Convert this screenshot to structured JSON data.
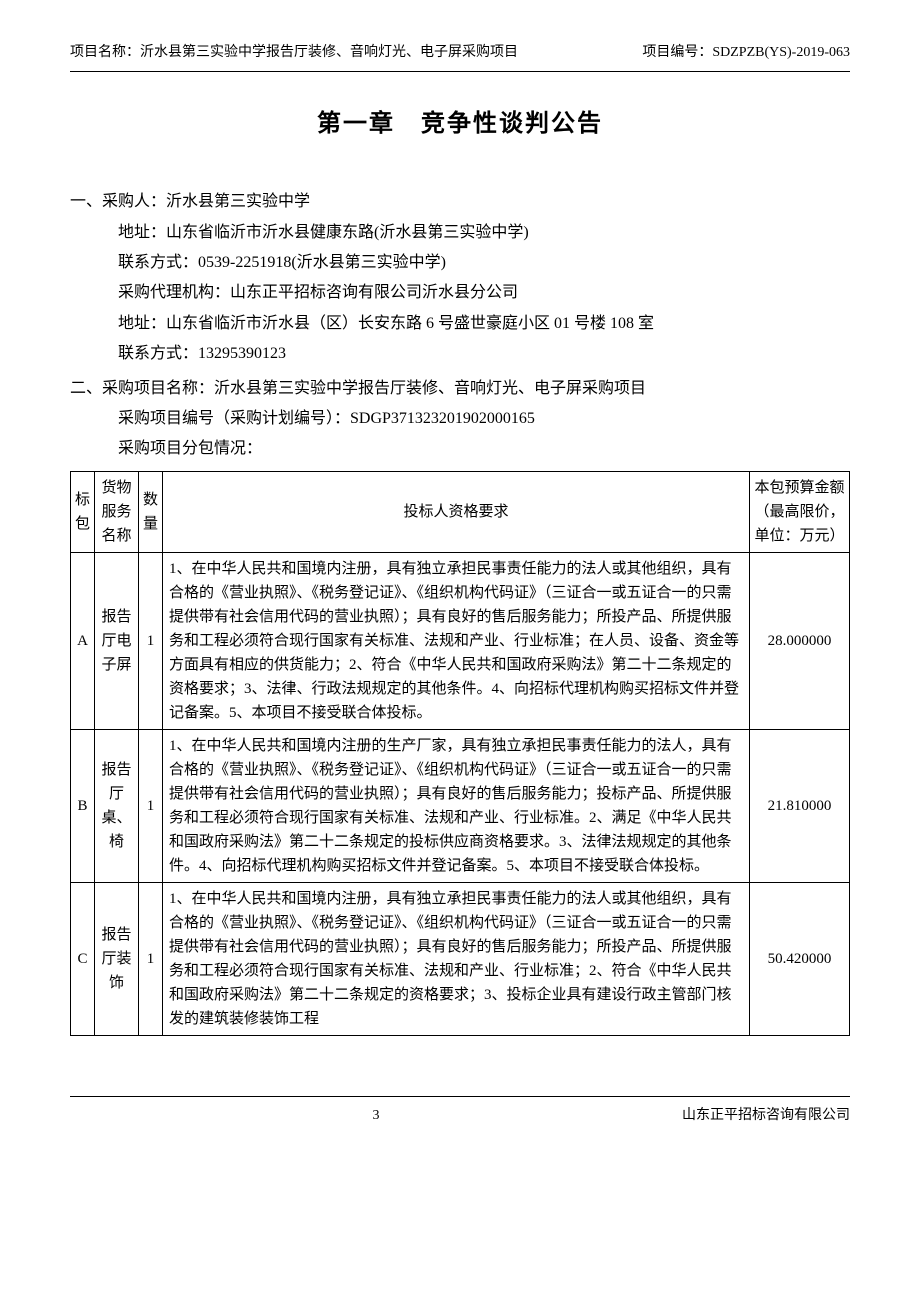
{
  "header": {
    "project_label": "项目名称：",
    "project_name": "沂水县第三实验中学报告厅装修、音响灯光、电子屏采购项目",
    "code_label": "项目编号：",
    "code_value": "SDZPZB(YS)-2019-063"
  },
  "chapter_title": "第一章　竞争性谈判公告",
  "section1": {
    "num": "一、",
    "purchaser_label": "采购人：",
    "purchaser": "沂水县第三实验中学",
    "address_label": "地址：",
    "address": "山东省临沂市沂水县健康东路(沂水县第三实验中学)",
    "contact_label": "联系方式：",
    "contact": "0539-2251918(沂水县第三实验中学)",
    "agency_label": "采购代理机构：",
    "agency": "山东正平招标咨询有限公司沂水县分公司",
    "agency_addr_label": "地址：",
    "agency_addr": "山东省临沂市沂水县（区）长安东路 6 号盛世豪庭小区 01 号楼 108 室",
    "agency_contact_label": "联系方式：",
    "agency_contact": "13295390123"
  },
  "section2": {
    "num": "二、",
    "project_label": "采购项目名称：",
    "project_name": "沂水县第三实验中学报告厅装修、音响灯光、电子屏采购项目",
    "plan_label": "采购项目编号（采购计划编号）：",
    "plan_value": "SDGP371323201902000165",
    "pkg_label": "采购项目分包情况："
  },
  "table": {
    "columns": {
      "pkg": "标包",
      "name": "货物服务名称",
      "qty": "数量",
      "req": "投标人资格要求",
      "budget": "本包预算金额（最高限价，单位：万元）"
    },
    "rows": [
      {
        "pkg": "A",
        "name": "报告厅电子屏",
        "qty": "1",
        "req": "1、在中华人民共和国境内注册，具有独立承担民事责任能力的法人或其他组织，具有合格的《营业执照》、《税务登记证》、《组织机构代码证》（三证合一或五证合一的只需提供带有社会信用代码的营业执照）；具有良好的售后服务能力；所投产品、所提供服务和工程必须符合现行国家有关标准、法规和产业、行业标准；在人员、设备、资金等方面具有相应的供货能力；2、符合《中华人民共和国政府采购法》第二十二条规定的资格要求；3、法律、行政法规规定的其他条件。4、向招标代理机构购买招标文件并登记备案。5、本项目不接受联合体投标。",
        "budget": "28.000000"
      },
      {
        "pkg": "B",
        "name": "报告厅桌、椅",
        "qty": "1",
        "req": "1、在中华人民共和国境内注册的生产厂家，具有独立承担民事责任能力的法人，具有合格的《营业执照》、《税务登记证》、《组织机构代码证》（三证合一或五证合一的只需提供带有社会信用代码的营业执照）；具有良好的售后服务能力；投标产品、所提供服务和工程必须符合现行国家有关标准、法规和产业、行业标准。2、满足《中华人民共和国政府采购法》第二十二条规定的投标供应商资格要求。3、法律法规规定的其他条件。4、向招标代理机构购买招标文件并登记备案。5、本项目不接受联合体投标。",
        "budget": "21.810000"
      },
      {
        "pkg": "C",
        "name": "报告厅装饰",
        "qty": "1",
        "req": "1、在中华人民共和国境内注册，具有独立承担民事责任能力的法人或其他组织，具有合格的《营业执照》、《税务登记证》、《组织机构代码证》（三证合一或五证合一的只需提供带有社会信用代码的营业执照）；具有良好的售后服务能力；所投产品、所提供服务和工程必须符合现行国家有关标准、法规和产业、行业标准；2、符合《中华人民共和国政府采购法》第二十二条规定的资格要求；3、投标企业具有建设行政主管部门核发的建筑装修装饰工程",
        "budget": "50.420000"
      }
    ]
  },
  "footer": {
    "page": "3",
    "company": "山东正平招标咨询有限公司"
  }
}
